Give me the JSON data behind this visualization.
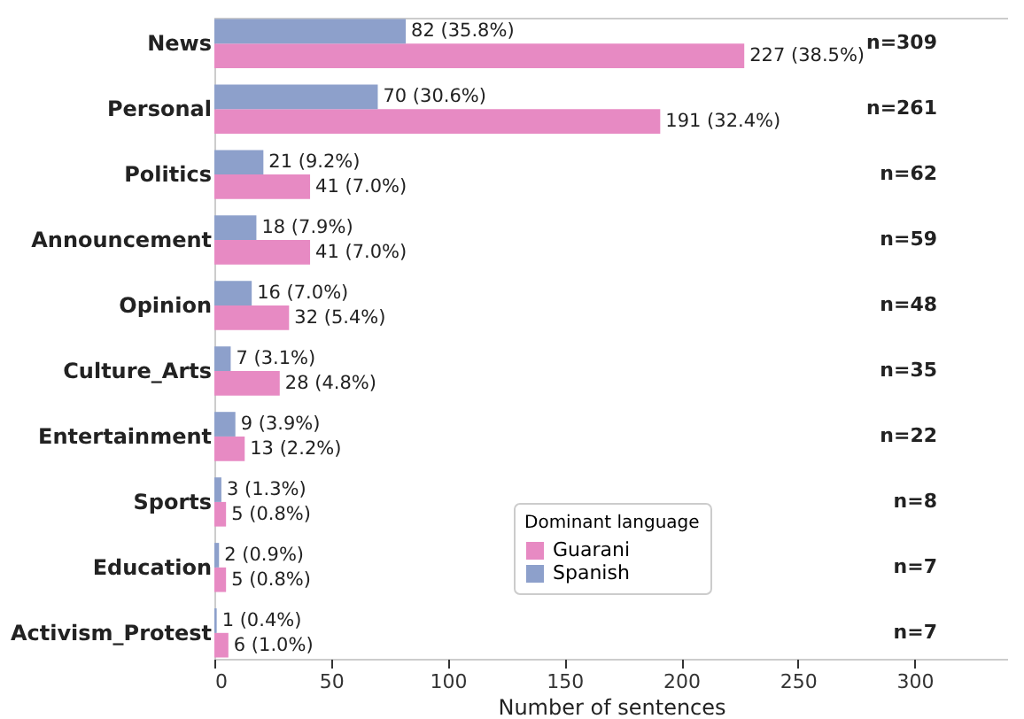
{
  "chart_data": {
    "type": "bar",
    "orientation": "horizontal",
    "xlabel": "Number of sentences",
    "legend_title": "Dominant language",
    "legend": "bottom",
    "categories": [
      "News",
      "Personal",
      "Politics",
      "Announcement",
      "Opinion",
      "Culture_Arts",
      "Entertainment",
      "Sports",
      "Education",
      "Activism_Protest"
    ],
    "series": [
      {
        "name": "Guarani",
        "color": "#e78ac3",
        "values": [
          227,
          191,
          41,
          41,
          32,
          28,
          13,
          5,
          5,
          6
        ],
        "value_labels": [
          "227 (38.5%)",
          "191 (32.4%)",
          "41 (7.0%)",
          "41 (7.0%)",
          "32 (5.4%)",
          "28 (4.8%)",
          "13 (2.2%)",
          "5 (0.8%)",
          "5 (0.8%)",
          "6 (1.0%)"
        ]
      },
      {
        "name": "Spanish",
        "color": "#8da0cb",
        "values": [
          82,
          70,
          21,
          18,
          16,
          7,
          9,
          3,
          2,
          1
        ],
        "value_labels": [
          "82 (35.8%)",
          "70 (30.6%)",
          "21 (9.2%)",
          "18 (7.9%)",
          "16 (7.0%)",
          "7 (3.1%)",
          "9 (3.9%)",
          "3 (1.3%)",
          "2 (0.9%)",
          "1 (0.4%)"
        ]
      }
    ],
    "annotations": [
      "n=309",
      "n=261",
      "n=62",
      "n=59",
      "n=48",
      "n=35",
      "n=22",
      "n=8",
      "n=7",
      "n=7"
    ],
    "xlim": [
      0,
      340
    ],
    "xticks": [
      0,
      50,
      100,
      150,
      200,
      250,
      300
    ],
    "grid": false
  }
}
